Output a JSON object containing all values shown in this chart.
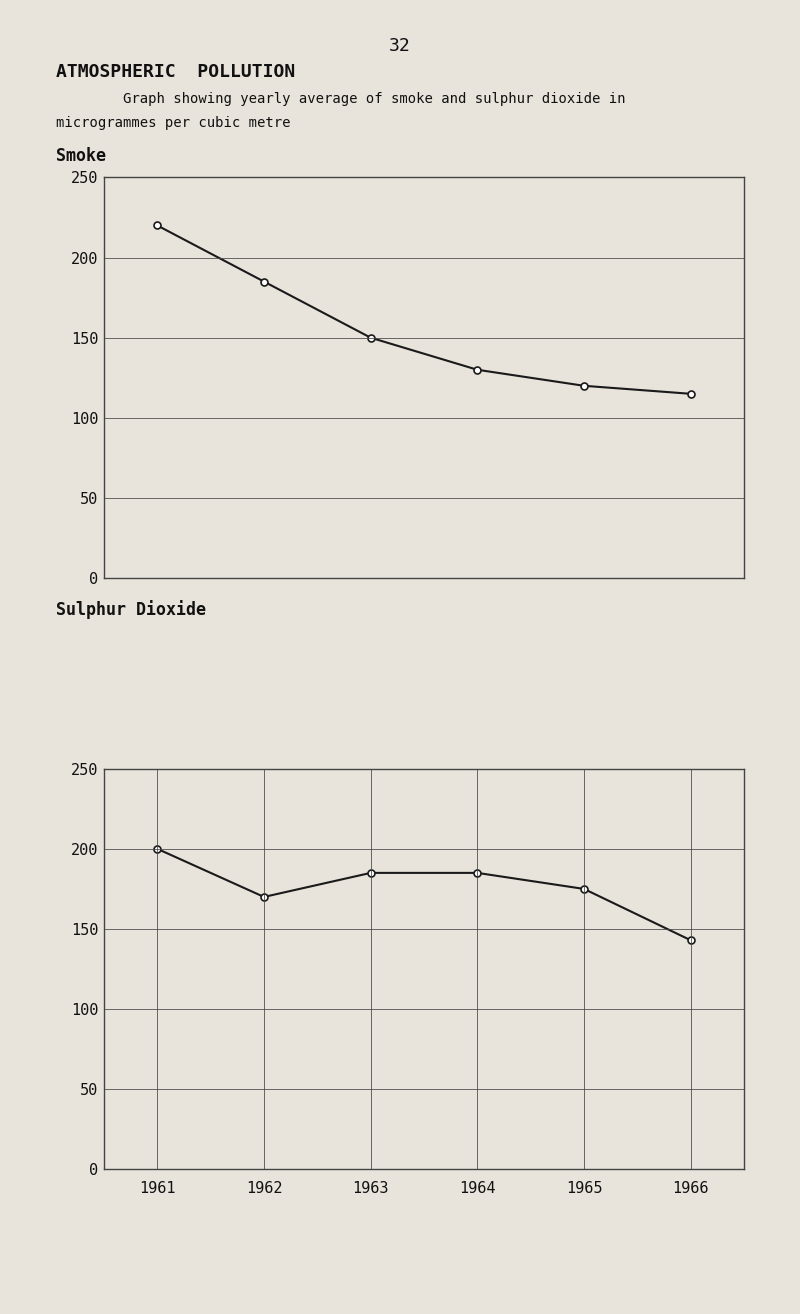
{
  "page_number": "32",
  "title": "ATMOSPHERIC  POLLUTION",
  "subtitle_line1": "        Graph showing yearly average of smoke and sulphur dioxide in",
  "subtitle_line2": "microgrammes per cubic metre",
  "smoke_label": "Smoke",
  "so2_label": "Sulphur Dioxide",
  "years": [
    1961,
    1962,
    1963,
    1964,
    1965,
    1966
  ],
  "smoke_values": [
    220,
    185,
    150,
    130,
    120,
    115
  ],
  "so2_values": [
    200,
    170,
    185,
    185,
    175,
    143
  ],
  "ylim": [
    0,
    250
  ],
  "yticks": [
    0,
    50,
    100,
    150,
    200,
    250
  ],
  "line_color": "#1a1a1a",
  "marker_style": "o",
  "marker_size": 5,
  "bg_color": "#e8e4dc",
  "grid_color": "#444444",
  "text_color": "#111111",
  "font_size_title": 13,
  "font_size_label": 12,
  "font_size_axis": 11,
  "font_size_page": 13
}
